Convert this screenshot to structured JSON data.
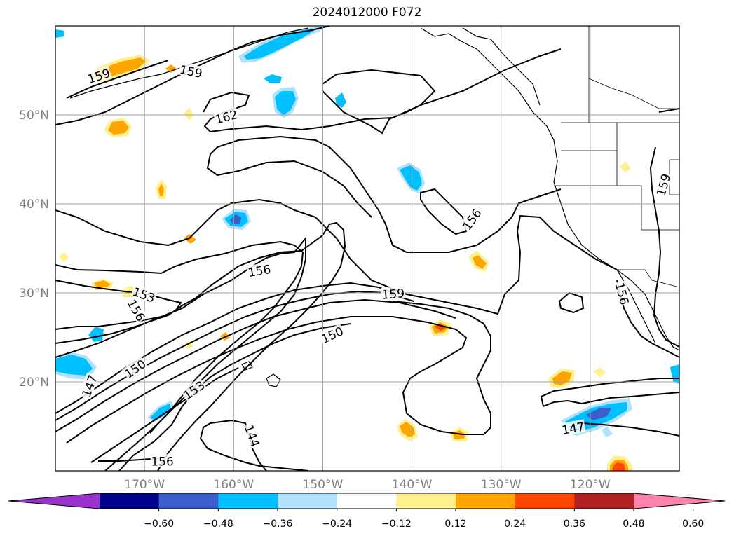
{
  "title": "2024012000 F072",
  "map": {
    "lon_range": [
      -180,
      -110
    ],
    "lat_range": [
      10,
      60
    ],
    "lat_ticks": [
      {
        "value": 20,
        "label": "20°N"
      },
      {
        "value": 30,
        "label": "30°N"
      },
      {
        "value": 40,
        "label": "40°N"
      },
      {
        "value": 50,
        "label": "50°N"
      }
    ],
    "lon_ticks": [
      {
        "value": -170,
        "label": "170°W"
      },
      {
        "value": -160,
        "label": "160°W"
      },
      {
        "value": -150,
        "label": "150°W"
      },
      {
        "value": -140,
        "label": "140°W"
      },
      {
        "value": -130,
        "label": "130°W"
      },
      {
        "value": -120,
        "label": "120°W"
      }
    ],
    "grid": true,
    "contour_labels": [
      {
        "text": "159",
        "lon": -175.1,
        "lat": 54.3,
        "rot": -18
      },
      {
        "text": "159",
        "lon": -164.8,
        "lat": 54.8,
        "rot": 12
      },
      {
        "text": "162",
        "lon": -160.8,
        "lat": 49.7,
        "rot": -15
      },
      {
        "text": "156",
        "lon": -157.1,
        "lat": 32.4,
        "rot": -10
      },
      {
        "text": "153",
        "lon": -170.1,
        "lat": 29.7,
        "rot": 20
      },
      {
        "text": "156",
        "lon": -171.0,
        "lat": 28.0,
        "rot": 60
      },
      {
        "text": "159",
        "lon": -142.1,
        "lat": 29.8,
        "rot": -5
      },
      {
        "text": "150",
        "lon": -148.9,
        "lat": 25.2,
        "rot": -25
      },
      {
        "text": "150",
        "lon": -171.0,
        "lat": 21.4,
        "rot": -35
      },
      {
        "text": "147",
        "lon": -176.1,
        "lat": 19.5,
        "rot": -70
      },
      {
        "text": "153",
        "lon": -164.4,
        "lat": 19.0,
        "rot": -35
      },
      {
        "text": "144",
        "lon": -158.0,
        "lat": 13.9,
        "rot": 70
      },
      {
        "text": "156",
        "lon": -168.0,
        "lat": 11.0,
        "rot": 0
      },
      {
        "text": "156",
        "lon": -133.2,
        "lat": 38.2,
        "rot": -55
      },
      {
        "text": "156",
        "lon": -116.5,
        "lat": 29.9,
        "rot": 75
      },
      {
        "text": "159",
        "lon": -111.7,
        "lat": 42.1,
        "rot": -75
      },
      {
        "text": "147",
        "lon": -121.9,
        "lat": 14.7,
        "rot": -10
      }
    ],
    "fill_palette": {
      "n_le_-0.60": "#9a32cd",
      "n_-0.60_-0.48": "#00008b",
      "n_-0.48_-0.36": "#3a5fcd",
      "n_-0.36_-0.24": "#00bfff",
      "n_-0.24_-0.12": "#b0e2ff",
      "p_0.12_0.24": "#fff08f",
      "p_0.24_0.36": "#ffa500",
      "p_0.36_0.48": "#ff4500",
      "p_0.48_0.60": "#b22222",
      "p_ge_0.60": "#ff82ab"
    }
  },
  "colorbar": {
    "colors": [
      "#9a32cd",
      "#00008b",
      "#3a5fcd",
      "#00bfff",
      "#b0e2ff",
      "#ffffff",
      "#fff08f",
      "#ffa500",
      "#ff4500",
      "#b22222",
      "#ff82ab"
    ],
    "tick_labels": [
      "−0.60",
      "−0.48",
      "−0.36",
      "−0.24",
      "−0.12",
      "0.12",
      "0.24",
      "0.36",
      "0.48",
      "0.60"
    ]
  }
}
